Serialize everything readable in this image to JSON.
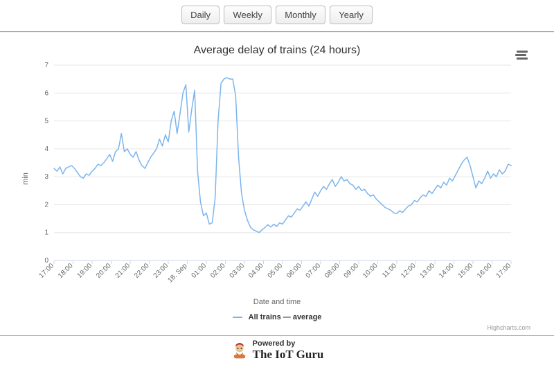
{
  "toolbar": {
    "buttons": [
      "Daily",
      "Weekly",
      "Monthly",
      "Yearly"
    ]
  },
  "chart": {
    "type": "line",
    "title": "Average delay of trains (24 hours)",
    "ylabel": "min",
    "xlabel": "Date and time",
    "legend_label": "All trains — average",
    "credits": "Highcharts.com",
    "series_color": "#7cb5ec",
    "grid_color": "#e6e6e6",
    "axis_color": "#ccd6eb",
    "text_color": "#666666",
    "background_color": "#ffffff",
    "line_width": 1.5,
    "ylim": [
      0,
      7
    ],
    "ytick_step": 1,
    "x_categories": [
      "17:00",
      "18:00",
      "19:00",
      "20:00",
      "21:00",
      "22:00",
      "23:00",
      "18. Sep",
      "01:00",
      "02:00",
      "03:00",
      "04:00",
      "05:00",
      "06:00",
      "07:00",
      "08:00",
      "09:00",
      "10:00",
      "11:00",
      "12:00",
      "13:00",
      "14:00",
      "15:00",
      "16:00",
      "17:00"
    ],
    "values": [
      3.3,
      3.2,
      3.35,
      3.1,
      3.3,
      3.35,
      3.4,
      3.3,
      3.15,
      3.0,
      2.95,
      3.1,
      3.05,
      3.2,
      3.3,
      3.45,
      3.4,
      3.5,
      3.65,
      3.8,
      3.55,
      3.9,
      4.0,
      4.55,
      3.9,
      4.0,
      3.8,
      3.7,
      3.9,
      3.6,
      3.4,
      3.3,
      3.5,
      3.7,
      3.85,
      4.0,
      4.35,
      4.1,
      4.5,
      4.25,
      5.0,
      5.35,
      4.55,
      5.25,
      6.0,
      6.3,
      4.6,
      5.4,
      6.1,
      3.2,
      2.1,
      1.6,
      1.7,
      1.3,
      1.35,
      2.25,
      5.0,
      6.35,
      6.5,
      6.55,
      6.5,
      6.5,
      5.9,
      3.7,
      2.4,
      1.8,
      1.45,
      1.2,
      1.1,
      1.05,
      1.0,
      1.1,
      1.18,
      1.28,
      1.2,
      1.3,
      1.22,
      1.35,
      1.3,
      1.45,
      1.6,
      1.55,
      1.7,
      1.85,
      1.8,
      1.95,
      2.1,
      1.95,
      2.2,
      2.45,
      2.3,
      2.5,
      2.65,
      2.55,
      2.75,
      2.9,
      2.65,
      2.8,
      3.0,
      2.85,
      2.9,
      2.75,
      2.7,
      2.55,
      2.65,
      2.5,
      2.55,
      2.4,
      2.3,
      2.35,
      2.2,
      2.1,
      2.0,
      1.9,
      1.85,
      1.8,
      1.7,
      1.68,
      1.78,
      1.72,
      1.85,
      1.95,
      2.0,
      2.15,
      2.1,
      2.25,
      2.35,
      2.3,
      2.5,
      2.4,
      2.55,
      2.7,
      2.6,
      2.8,
      2.7,
      2.95,
      2.85,
      3.05,
      3.25,
      3.45,
      3.6,
      3.7,
      3.4,
      3.0,
      2.6,
      2.85,
      2.75,
      2.95,
      3.2,
      2.95,
      3.1,
      3.0,
      3.25,
      3.1,
      3.2,
      3.45,
      3.4
    ]
  },
  "footer": {
    "line1": "Powered by",
    "line2": "The IoT Guru"
  }
}
